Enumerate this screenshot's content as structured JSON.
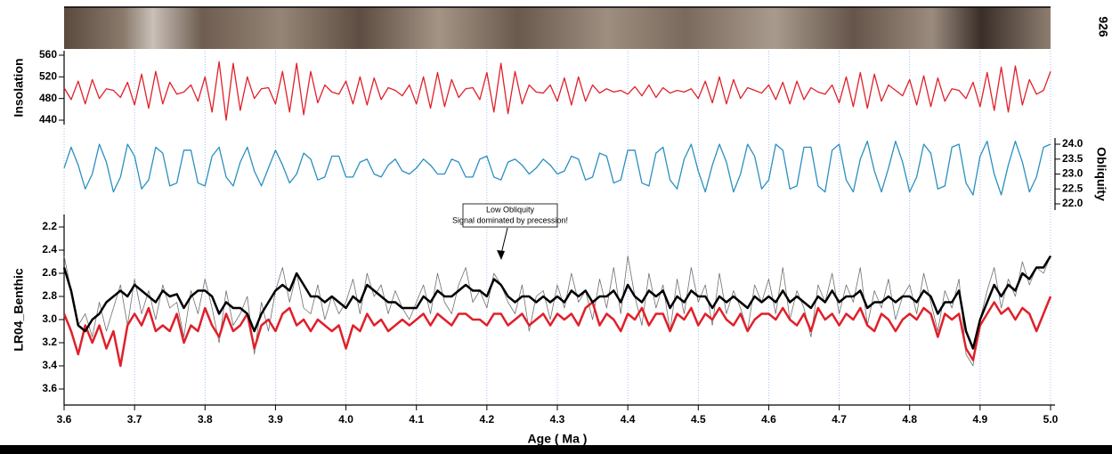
{
  "chart_data": {
    "type": "line",
    "core_label": "926",
    "xlabel": "Age ( Ma )",
    "xlim": [
      3.6,
      5
    ],
    "xticks": [
      3.6,
      3.7,
      3.8,
      3.9,
      {
        "value": 4,
        "label": "4.0"
      },
      4.1,
      4.2,
      4.3,
      4.4,
      4.5,
      4.6,
      4.7,
      4.8,
      4.9,
      {
        "value": 5,
        "label": "5.0"
      }
    ],
    "grid": true,
    "x": [
      3.6,
      3.61,
      3.62,
      3.63,
      3.64,
      3.65,
      3.66,
      3.67,
      3.68,
      3.69,
      3.7,
      3.71,
      3.72,
      3.73,
      3.74,
      3.75,
      3.76,
      3.77,
      3.78,
      3.79,
      3.8,
      3.81,
      3.82,
      3.83,
      3.84,
      3.85,
      3.86,
      3.87,
      3.88,
      3.89,
      3.9,
      3.91,
      3.92,
      3.93,
      3.94,
      3.95,
      3.96,
      3.97,
      3.98,
      3.99,
      4,
      4.01,
      4.02,
      4.03,
      4.04,
      4.05,
      4.06,
      4.07,
      4.08,
      4.09,
      4.1,
      4.11,
      4.12,
      4.13,
      4.14,
      4.15,
      4.16,
      4.17,
      4.18,
      4.19,
      4.2,
      4.21,
      4.22,
      4.23,
      4.24,
      4.25,
      4.26,
      4.27,
      4.28,
      4.29,
      4.3,
      4.31,
      4.32,
      4.33,
      4.34,
      4.35,
      4.36,
      4.37,
      4.38,
      4.39,
      4.4,
      4.41,
      4.42,
      4.43,
      4.44,
      4.45,
      4.46,
      4.47,
      4.48,
      4.49,
      4.5,
      4.51,
      4.52,
      4.53,
      4.54,
      4.55,
      4.56,
      4.57,
      4.58,
      4.59,
      4.6,
      4.61,
      4.62,
      4.63,
      4.64,
      4.65,
      4.66,
      4.67,
      4.68,
      4.69,
      4.7,
      4.71,
      4.72,
      4.73,
      4.74,
      4.75,
      4.76,
      4.77,
      4.78,
      4.79,
      4.8,
      4.81,
      4.82,
      4.83,
      4.84,
      4.85,
      4.86,
      4.87,
      4.88,
      4.89,
      4.9,
      4.91,
      4.92,
      4.93,
      4.94,
      4.95,
      4.96,
      4.97,
      4.98,
      4.99,
      5
    ],
    "panels": [
      {
        "ylabel": "Insolation",
        "side": "left",
        "ylim": [
          440,
          560
        ],
        "yticks": [
          440,
          480,
          520,
          560
        ],
        "series": [
          {
            "color": "#e0202a",
            "width": 1.3,
            "values": [
              500,
              478,
              512,
              470,
              515,
              480,
              498,
              495,
              482,
              510,
              468,
              525,
              462,
              530,
              470,
              510,
              488,
              492,
              505,
              475,
              520,
              455,
              548,
              440,
              545,
              458,
              520,
              480,
              498,
              500,
              470,
              530,
              455,
              545,
              450,
              530,
              472,
              505,
              492,
              488,
              512,
              470,
              520,
              468,
              518,
              478,
              500,
              495,
              485,
              505,
              470,
              520,
              462,
              528,
              465,
              515,
              482,
              498,
              500,
              478,
              528,
              455,
              545,
              452,
              530,
              470,
              505,
              492,
              490,
              505,
              475,
              518,
              468,
              520,
              475,
              505,
              490,
              498,
              492,
              495,
              488,
              502,
              485,
              505,
              482,
              500,
              490,
              495,
              492,
              498,
              480,
              512,
              472,
              520,
              470,
              515,
              480,
              500,
              495,
              490,
              505,
              478,
              510,
              470,
              512,
              478,
              500,
              492,
              488,
              505,
              472,
              520,
              465,
              528,
              462,
              525,
              475,
              505,
              495,
              485,
              515,
              468,
              522,
              465,
              518,
              475,
              498,
              495,
              480,
              510,
              465,
              528,
              458,
              538,
              455,
              540,
              468,
              515,
              488,
              495,
              530
            ]
          }
        ]
      },
      {
        "ylabel": "Obliquity",
        "side": "right",
        "ylim": [
          22,
          24
        ],
        "yticks": [
          {
            "value": 24,
            "label": "24.0"
          },
          23.5,
          {
            "value": 23,
            "label": "23.0"
          },
          22.5,
          {
            "value": 22,
            "label": "22.0"
          }
        ],
        "series": [
          {
            "color": "#2a8fc0",
            "width": 1.3,
            "values": [
              23.2,
              23.9,
              23.3,
              22.5,
              23.0,
              24.0,
              23.4,
              22.4,
              22.9,
              24.0,
              23.6,
              22.5,
              22.8,
              23.9,
              23.7,
              22.6,
              22.7,
              23.8,
              23.8,
              22.7,
              22.6,
              23.6,
              23.9,
              22.9,
              22.6,
              23.4,
              23.9,
              23.1,
              22.6,
              23.2,
              23.8,
              23.3,
              22.7,
              23.0,
              23.7,
              23.5,
              22.8,
              22.9,
              23.6,
              23.6,
              22.9,
              22.9,
              23.4,
              23.5,
              23.0,
              22.9,
              23.3,
              23.5,
              23.1,
              23.0,
              23.2,
              23.5,
              23.3,
              23.0,
              23.0,
              23.5,
              23.4,
              22.9,
              22.9,
              23.5,
              23.6,
              22.9,
              22.8,
              23.4,
              23.5,
              23.3,
              23.0,
              23.2,
              23.5,
              23.3,
              23.0,
              23.1,
              23.6,
              23.5,
              22.8,
              22.9,
              23.7,
              23.6,
              22.7,
              22.8,
              23.8,
              23.8,
              22.7,
              22.6,
              23.7,
              23.9,
              22.8,
              22.5,
              23.5,
              24.0,
              23.1,
              22.4,
              23.3,
              24.0,
              23.4,
              22.4,
              23.0,
              24.0,
              23.6,
              22.5,
              22.8,
              24.0,
              23.8,
              22.5,
              22.6,
              23.9,
              23.9,
              22.6,
              22.4,
              23.8,
              24.0,
              22.8,
              22.4,
              23.5,
              24.1,
              23.1,
              22.4,
              23.2,
              24.1,
              23.4,
              22.4,
              22.9,
              24.0,
              23.7,
              22.5,
              22.6,
              23.9,
              24.0,
              22.7,
              22.3,
              23.6,
              24.1,
              23.0,
              22.3,
              23.3,
              24.1,
              23.4,
              22.4,
              22.9,
              23.9,
              24.0
            ]
          }
        ]
      },
      {
        "ylabel": "LR04_Benthic",
        "side": "left",
        "ylim": [
          3.6,
          2.2
        ],
        "yticks": [
          2.2,
          2.4,
          2.6,
          2.8,
          {
            "value": 3,
            "label": "3.0"
          },
          3.2,
          3.4,
          3.6
        ],
        "annotation": [
          "Low Obliquity",
          "Signal dominated by precession!"
        ],
        "series": [
          {
            "color": "#707070",
            "width": 0.8,
            "values": [
              2.45,
              2.75,
              3.05,
              2.95,
              3.15,
              2.85,
              3.1,
              2.9,
              2.7,
              3.05,
              2.65,
              2.95,
              2.75,
              3.0,
              2.7,
              2.9,
              2.85,
              3.15,
              2.75,
              2.95,
              2.65,
              2.9,
              3.2,
              2.75,
              3.05,
              2.95,
              2.8,
              3.3,
              2.85,
              3.1,
              2.75,
              2.55,
              2.85,
              2.6,
              2.9,
              2.95,
              2.7,
              3.0,
              2.8,
              2.95,
              2.85,
              2.65,
              2.95,
              2.6,
              2.8,
              2.7,
              2.95,
              2.75,
              2.9,
              3.0,
              2.85,
              2.7,
              2.95,
              2.6,
              2.85,
              2.95,
              2.7,
              2.55,
              2.85,
              2.75,
              2.9,
              2.6,
              2.7,
              2.85,
              2.95,
              2.7,
              3.1,
              2.8,
              2.75,
              3.0,
              2.7,
              2.9,
              2.6,
              2.85,
              2.75,
              3.0,
              2.65,
              2.9,
              2.55,
              2.95,
              2.45,
              2.8,
              3.05,
              2.6,
              2.9,
              2.7,
              3.1,
              2.65,
              2.95,
              2.55,
              2.85,
              2.7,
              3.05,
              2.6,
              2.95,
              2.75,
              2.9,
              3.1,
              2.7,
              2.85,
              2.65,
              2.95,
              2.55,
              3.0,
              2.75,
              2.9,
              3.15,
              2.7,
              2.85,
              2.6,
              2.95,
              2.7,
              2.85,
              2.55,
              3.05,
              2.75,
              2.9,
              2.65,
              3.0,
              2.8,
              2.7,
              2.95,
              2.6,
              2.85,
              3.1,
              2.75,
              2.9,
              2.65,
              3.3,
              3.4,
              3.0,
              2.75,
              2.55,
              2.9,
              2.65,
              2.8,
              2.5,
              2.7,
              2.55,
              2.6,
              2.45
            ]
          },
          {
            "color": "#e0202a",
            "width": 2.5,
            "values": [
              2.95,
              3.1,
              3.3,
              3.05,
              3.2,
              3.05,
              3.25,
              3.1,
              3.4,
              3.05,
              2.95,
              3.05,
              2.9,
              3.1,
              3.05,
              3.1,
              2.95,
              3.2,
              3.05,
              3.1,
              2.9,
              3.05,
              3.15,
              2.95,
              3.1,
              3.05,
              2.95,
              3.25,
              3.05,
              3.0,
              3.1,
              2.95,
              2.9,
              3.05,
              3.0,
              3.1,
              3.0,
              3.05,
              3.1,
              3.05,
              3.25,
              3.05,
              3.1,
              2.95,
              3.05,
              3.0,
              3.1,
              3.05,
              3.0,
              3.05,
              3.0,
              2.95,
              3.05,
              2.95,
              3.0,
              3.05,
              2.95,
              2.95,
              3.0,
              3.0,
              3.05,
              2.95,
              2.95,
              3.05,
              3.0,
              2.95,
              3.05,
              3.0,
              2.95,
              3.05,
              2.95,
              3.0,
              2.95,
              3.05,
              2.9,
              2.85,
              3.05,
              2.95,
              3.0,
              3.1,
              2.95,
              3.0,
              2.9,
              3.05,
              2.95,
              2.95,
              3.1,
              2.95,
              3.0,
              2.9,
              3.05,
              2.95,
              3.0,
              2.9,
              3.0,
              3.05,
              2.95,
              3.1,
              3.0,
              2.95,
              2.95,
              3.0,
              2.9,
              3.0,
              3.05,
              2.95,
              3.1,
              2.9,
              3.0,
              2.95,
              3.05,
              2.95,
              3.0,
              2.9,
              3.05,
              3.1,
              2.95,
              3.0,
              3.1,
              3.0,
              2.95,
              3.0,
              2.9,
              2.95,
              3.15,
              2.95,
              3.0,
              2.95,
              3.25,
              3.35,
              3.05,
              2.95,
              2.85,
              2.95,
              2.9,
              3.0,
              2.9,
              2.95,
              3.1,
              2.95,
              2.8
            ]
          },
          {
            "color": "#000000",
            "width": 2.5,
            "values": [
              2.55,
              2.75,
              3.05,
              3.1,
              3.0,
              2.95,
              2.85,
              2.8,
              2.75,
              2.8,
              2.7,
              2.75,
              2.8,
              2.85,
              2.75,
              2.8,
              2.78,
              2.9,
              2.8,
              2.75,
              2.75,
              2.8,
              2.95,
              2.85,
              2.9,
              2.9,
              2.95,
              3.1,
              2.95,
              2.85,
              2.75,
              2.7,
              2.75,
              2.6,
              2.7,
              2.8,
              2.8,
              2.85,
              2.8,
              2.85,
              2.9,
              2.8,
              2.85,
              2.7,
              2.75,
              2.8,
              2.85,
              2.85,
              2.9,
              2.9,
              2.9,
              2.8,
              2.85,
              2.75,
              2.8,
              2.8,
              2.75,
              2.7,
              2.75,
              2.75,
              2.8,
              2.65,
              2.7,
              2.8,
              2.85,
              2.8,
              2.8,
              2.85,
              2.8,
              2.85,
              2.8,
              2.85,
              2.75,
              2.8,
              2.75,
              2.85,
              2.8,
              2.8,
              2.75,
              2.85,
              2.7,
              2.8,
              2.85,
              2.75,
              2.8,
              2.75,
              2.9,
              2.8,
              2.85,
              2.75,
              2.8,
              2.8,
              2.9,
              2.8,
              2.85,
              2.8,
              2.85,
              2.9,
              2.8,
              2.85,
              2.8,
              2.85,
              2.75,
              2.85,
              2.8,
              2.85,
              2.9,
              2.8,
              2.85,
              2.75,
              2.85,
              2.8,
              2.8,
              2.75,
              2.9,
              2.85,
              2.85,
              2.8,
              2.85,
              2.8,
              2.8,
              2.85,
              2.75,
              2.8,
              2.95,
              2.85,
              2.85,
              2.75,
              3.1,
              3.25,
              3.0,
              2.85,
              2.7,
              2.8,
              2.7,
              2.75,
              2.6,
              2.65,
              2.55,
              2.55,
              2.45
            ]
          }
        ]
      }
    ]
  }
}
